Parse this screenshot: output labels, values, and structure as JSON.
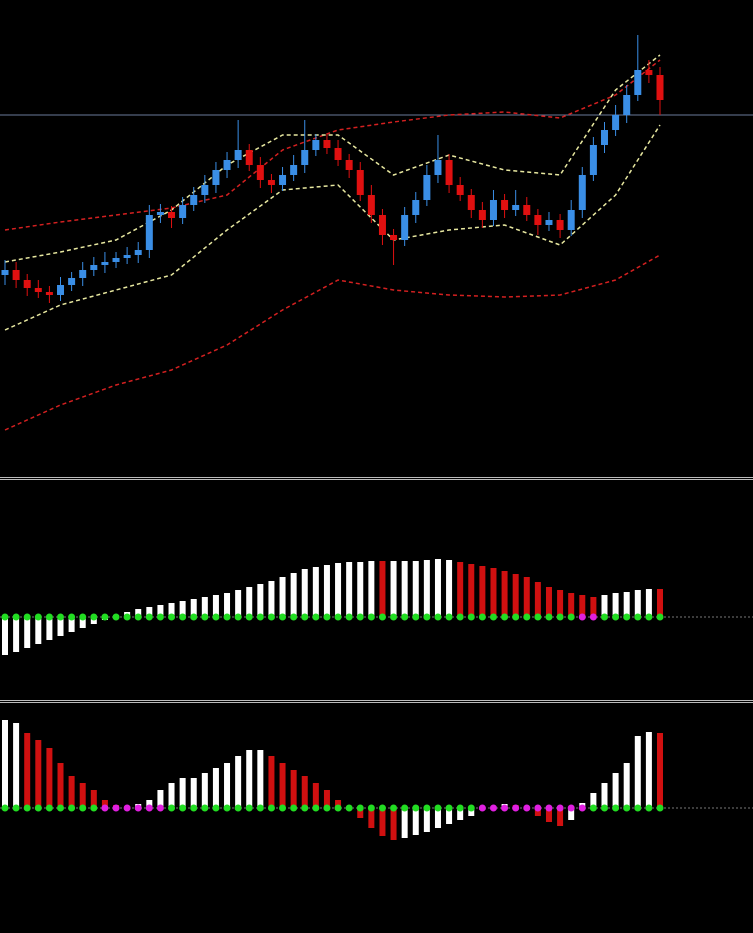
{
  "chart_data": [
    {
      "type": "candlestick",
      "x": [
        0,
        1,
        2,
        3,
        4,
        5,
        6,
        7,
        8,
        9,
        10,
        11,
        12,
        13,
        14,
        15,
        16,
        17,
        18,
        19,
        20,
        21,
        22,
        23,
        24,
        25,
        26,
        27,
        28,
        29,
        30,
        31,
        32,
        33,
        34,
        35,
        36,
        37,
        38,
        39,
        40,
        41,
        42,
        43,
        44,
        45,
        46,
        47,
        48,
        49,
        50,
        51,
        52,
        53,
        54,
        55,
        56,
        57,
        58,
        59
      ],
      "open": [
        200,
        205,
        195,
        187,
        183,
        180,
        190,
        197,
        205,
        210,
        213,
        217,
        220,
        225,
        260,
        263,
        257,
        270,
        280,
        290,
        305,
        315,
        325,
        310,
        295,
        290,
        300,
        310,
        325,
        335,
        327,
        315,
        305,
        280,
        260,
        240,
        235,
        260,
        275,
        300,
        315,
        290,
        280,
        265,
        255,
        275,
        265,
        270,
        260,
        250,
        255,
        245,
        265,
        300,
        330,
        345,
        360,
        380,
        405,
        400
      ],
      "high": [
        215,
        213,
        201,
        195,
        189,
        198,
        203,
        213,
        218,
        223,
        223,
        228,
        233,
        270,
        271,
        269,
        278,
        288,
        300,
        313,
        323,
        355,
        331,
        318,
        301,
        308,
        320,
        355,
        341,
        341,
        335,
        321,
        313,
        290,
        266,
        246,
        268,
        283,
        310,
        340,
        321,
        298,
        286,
        273,
        285,
        281,
        285,
        278,
        266,
        263,
        261,
        275,
        308,
        338,
        353,
        370,
        390,
        440,
        415,
        408
      ],
      "low": [
        190,
        187,
        179,
        177,
        172,
        174,
        184,
        189,
        199,
        202,
        207,
        211,
        212,
        217,
        252,
        247,
        251,
        264,
        272,
        282,
        297,
        307,
        304,
        287,
        282,
        284,
        294,
        302,
        319,
        321,
        309,
        297,
        274,
        252,
        230,
        210,
        229,
        252,
        269,
        292,
        282,
        274,
        257,
        247,
        249,
        257,
        259,
        254,
        240,
        244,
        237,
        239,
        257,
        294,
        322,
        339,
        352,
        374,
        392,
        360
      ],
      "close": [
        205,
        195,
        187,
        183,
        180,
        190,
        197,
        205,
        210,
        213,
        217,
        220,
        225,
        260,
        263,
        257,
        270,
        280,
        290,
        305,
        315,
        325,
        310,
        295,
        290,
        300,
        310,
        325,
        335,
        327,
        315,
        305,
        280,
        260,
        240,
        235,
        260,
        275,
        300,
        315,
        290,
        280,
        265,
        255,
        275,
        265,
        270,
        260,
        250,
        255,
        245,
        265,
        300,
        330,
        345,
        360,
        380,
        405,
        400,
        375
      ],
      "up_color": "#3a8ee6",
      "down_color": "#e01010",
      "xlim": [
        0,
        59
      ],
      "ylim": [
        0,
        475
      ],
      "reference_line": 360,
      "reference_color": "#6a7a9a",
      "lines": [
        {
          "color": "#d42020",
          "x": [
            0,
            5,
            10,
            15,
            20,
            25,
            30,
            35,
            40,
            45,
            50,
            55,
            59
          ],
          "values": [
            245,
            253,
            260,
            267,
            280,
            325,
            345,
            353,
            360,
            363,
            357,
            380,
            415
          ]
        },
        {
          "color": "#d42020",
          "x": [
            0,
            5,
            10,
            15,
            20,
            25,
            30,
            35,
            40,
            45,
            50,
            55,
            59
          ],
          "values": [
            45,
            70,
            90,
            105,
            130,
            165,
            195,
            185,
            180,
            178,
            180,
            195,
            220
          ]
        },
        {
          "color": "#e8e8a0",
          "x": [
            0,
            5,
            10,
            15,
            20,
            25,
            30,
            35,
            40,
            45,
            50,
            55,
            59
          ],
          "values": [
            213,
            223,
            235,
            265,
            310,
            340,
            340,
            300,
            320,
            305,
            300,
            385,
            420
          ]
        },
        {
          "color": "#e8e8a0",
          "x": [
            0,
            5,
            10,
            15,
            20,
            25,
            30,
            35,
            40,
            45,
            50,
            55,
            59
          ],
          "values": [
            145,
            170,
            185,
            200,
            245,
            285,
            290,
            235,
            245,
            250,
            230,
            280,
            350
          ]
        }
      ]
    },
    {
      "type": "bar",
      "x": [
        0,
        1,
        2,
        3,
        4,
        5,
        6,
        7,
        8,
        9,
        10,
        11,
        12,
        13,
        14,
        15,
        16,
        17,
        18,
        19,
        20,
        21,
        22,
        23,
        24,
        25,
        26,
        27,
        28,
        29,
        30,
        31,
        32,
        33,
        34,
        35,
        36,
        37,
        38,
        39,
        40,
        41,
        42,
        43,
        44,
        45,
        46,
        47,
        48,
        49,
        50,
        51,
        52,
        53,
        54,
        55,
        56,
        57,
        58,
        59
      ],
      "values": [
        -38,
        -35,
        -31,
        -27,
        -23,
        -19,
        -15,
        -11,
        -7,
        -3,
        2,
        5,
        8,
        10,
        12,
        14,
        16,
        18,
        20,
        22,
        24,
        27,
        30,
        33,
        36,
        40,
        44,
        48,
        50,
        52,
        54,
        55,
        55,
        56,
        56,
        56,
        56,
        56,
        57,
        58,
        57,
        55,
        53,
        51,
        49,
        46,
        43,
        40,
        35,
        30,
        27,
        24,
        22,
        20,
        22,
        24,
        25,
        27,
        28,
        28
      ],
      "colors": [
        "#fff",
        "#fff",
        "#fff",
        "#fff",
        "#fff",
        "#fff",
        "#fff",
        "#fff",
        "#fff",
        "#fff",
        "#fff",
        "#fff",
        "#fff",
        "#fff",
        "#fff",
        "#fff",
        "#fff",
        "#fff",
        "#fff",
        "#fff",
        "#fff",
        "#fff",
        "#fff",
        "#fff",
        "#fff",
        "#fff",
        "#fff",
        "#fff",
        "#fff",
        "#fff",
        "#fff",
        "#fff",
        "#fff",
        "#fff",
        "#d01010",
        "#fff",
        "#fff",
        "#fff",
        "#fff",
        "#fff",
        "#fff",
        "#d01010",
        "#d01010",
        "#d01010",
        "#d01010",
        "#d01010",
        "#d01010",
        "#d01010",
        "#d01010",
        "#d01010",
        "#d01010",
        "#d01010",
        "#d01010",
        "#d01010",
        "#fff",
        "#fff",
        "#fff",
        "#fff",
        "#fff",
        "#d01010"
      ],
      "dot_colors": [
        "#22dd22",
        "#22dd22",
        "#22dd22",
        "#22dd22",
        "#22dd22",
        "#22dd22",
        "#22dd22",
        "#22dd22",
        "#22dd22",
        "#22dd22",
        "#22dd22",
        "#22dd22",
        "#22dd22",
        "#22dd22",
        "#22dd22",
        "#22dd22",
        "#22dd22",
        "#22dd22",
        "#22dd22",
        "#22dd22",
        "#22dd22",
        "#22dd22",
        "#22dd22",
        "#22dd22",
        "#22dd22",
        "#22dd22",
        "#22dd22",
        "#22dd22",
        "#22dd22",
        "#22dd22",
        "#22dd22",
        "#22dd22",
        "#22dd22",
        "#22dd22",
        "#22dd22",
        "#22dd22",
        "#22dd22",
        "#22dd22",
        "#22dd22",
        "#22dd22",
        "#22dd22",
        "#22dd22",
        "#22dd22",
        "#22dd22",
        "#22dd22",
        "#22dd22",
        "#22dd22",
        "#22dd22",
        "#22dd22",
        "#22dd22",
        "#22dd22",
        "#22dd22",
        "#e020e0",
        "#e020e0",
        "#22dd22",
        "#22dd22",
        "#22dd22",
        "#22dd22",
        "#22dd22",
        "#22dd22"
      ],
      "xlim": [
        0,
        59
      ],
      "ylim": [
        -83,
        137
      ]
    },
    {
      "type": "bar",
      "x": [
        0,
        1,
        2,
        3,
        4,
        5,
        6,
        7,
        8,
        9,
        10,
        11,
        12,
        13,
        14,
        15,
        16,
        17,
        18,
        19,
        20,
        21,
        22,
        23,
        24,
        25,
        26,
        27,
        28,
        29,
        30,
        31,
        32,
        33,
        34,
        35,
        36,
        37,
        38,
        39,
        40,
        41,
        42,
        43,
        44,
        45,
        46,
        47,
        48,
        49,
        50,
        51,
        52,
        53,
        54,
        55,
        56,
        57,
        58,
        59
      ],
      "values": [
        88,
        85,
        75,
        68,
        60,
        45,
        32,
        25,
        18,
        8,
        3,
        2,
        4,
        8,
        18,
        25,
        30,
        30,
        35,
        40,
        45,
        52,
        58,
        58,
        52,
        45,
        38,
        32,
        25,
        18,
        8,
        -2,
        -10,
        -20,
        -28,
        -32,
        -30,
        -27,
        -24,
        -20,
        -16,
        -12,
        -8,
        -2,
        2,
        4,
        3,
        -2,
        -8,
        -14,
        -18,
        -12,
        5,
        15,
        25,
        35,
        45,
        72,
        76,
        75
      ],
      "colors": [
        "#fff",
        "#fff",
        "#d01010",
        "#d01010",
        "#d01010",
        "#d01010",
        "#d01010",
        "#d01010",
        "#d01010",
        "#d01010",
        "#d01010",
        "#d01010",
        "#fff",
        "#fff",
        "#fff",
        "#fff",
        "#fff",
        "#fff",
        "#fff",
        "#fff",
        "#fff",
        "#fff",
        "#fff",
        "#fff",
        "#d01010",
        "#d01010",
        "#d01010",
        "#d01010",
        "#d01010",
        "#d01010",
        "#d01010",
        "#d01010",
        "#d01010",
        "#d01010",
        "#d01010",
        "#d01010",
        "#fff",
        "#fff",
        "#fff",
        "#fff",
        "#fff",
        "#fff",
        "#fff",
        "#fff",
        "#fff",
        "#fff",
        "#d01010",
        "#d01010",
        "#d01010",
        "#d01010",
        "#d01010",
        "#fff",
        "#fff",
        "#fff",
        "#fff",
        "#fff",
        "#fff",
        "#fff",
        "#fff",
        "#d01010"
      ],
      "dot_colors": [
        "#22dd22",
        "#22dd22",
        "#22dd22",
        "#22dd22",
        "#22dd22",
        "#22dd22",
        "#22dd22",
        "#22dd22",
        "#22dd22",
        "#e020e0",
        "#e020e0",
        "#e020e0",
        "#e020e0",
        "#e020e0",
        "#e020e0",
        "#22dd22",
        "#22dd22",
        "#22dd22",
        "#22dd22",
        "#22dd22",
        "#22dd22",
        "#22dd22",
        "#22dd22",
        "#22dd22",
        "#22dd22",
        "#22dd22",
        "#22dd22",
        "#22dd22",
        "#22dd22",
        "#22dd22",
        "#22dd22",
        "#22dd22",
        "#22dd22",
        "#22dd22",
        "#22dd22",
        "#22dd22",
        "#22dd22",
        "#22dd22",
        "#22dd22",
        "#22dd22",
        "#22dd22",
        "#22dd22",
        "#22dd22",
        "#e020e0",
        "#e020e0",
        "#e020e0",
        "#e020e0",
        "#e020e0",
        "#e020e0",
        "#e020e0",
        "#e020e0",
        "#e020e0",
        "#e020e0",
        "#22dd22",
        "#22dd22",
        "#22dd22",
        "#22dd22",
        "#22dd22",
        "#22dd22",
        "#22dd22"
      ],
      "xlim": [
        0,
        59
      ],
      "ylim": [
        -125,
        103
      ]
    }
  ]
}
